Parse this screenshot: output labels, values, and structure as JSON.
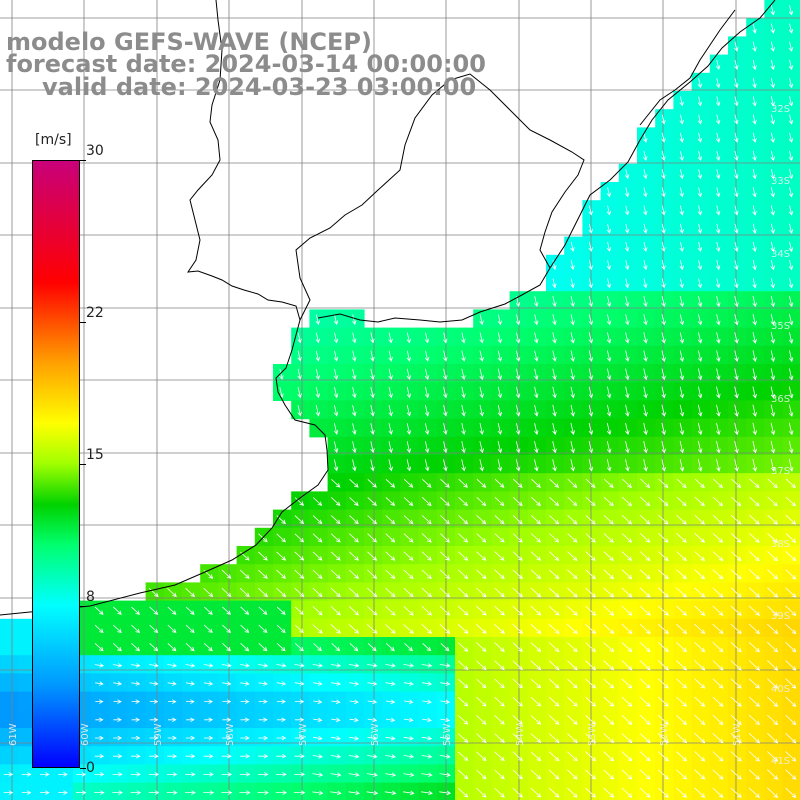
{
  "title": {
    "line1": "modelo GEFS-WAVE (NCEP)",
    "line2": "forecast date: 2024-03-14 00:00:00",
    "line3": "valid date: 2024-03-23 03:00:00"
  },
  "colorbar": {
    "unit": "[m/s]",
    "ticks": [
      "30",
      "22",
      "15",
      "8",
      "0"
    ],
    "tick_values": [
      30,
      22,
      15,
      8,
      0
    ],
    "min": 0,
    "max": 30,
    "stops": [
      {
        "v": 0,
        "color": "#0000ff"
      },
      {
        "v": 4,
        "color": "#0096ff"
      },
      {
        "v": 8,
        "color": "#00ffff"
      },
      {
        "v": 11,
        "color": "#00ff6e"
      },
      {
        "v": 13,
        "color": "#00d200"
      },
      {
        "v": 15,
        "color": "#a0ff00"
      },
      {
        "v": 17,
        "color": "#ffff00"
      },
      {
        "v": 20,
        "color": "#ffa000"
      },
      {
        "v": 24,
        "color": "#ff0000"
      },
      {
        "v": 30,
        "color": "#c8007a"
      }
    ]
  },
  "lat_labels": [
    "32S",
    "33S",
    "34S",
    "35S",
    "36S",
    "37S",
    "38S",
    "39S",
    "40S",
    "41S"
  ],
  "lon_labels": [
    "61W",
    "60W",
    "59W",
    "58W",
    "57W",
    "56W",
    "55W",
    "54W",
    "53W",
    "52W",
    "51W"
  ],
  "extent": {
    "lon_min": -61.55,
    "lon_max": -50.6,
    "lat_min": -41.65,
    "lat_max": -30.6
  },
  "colors": {
    "land": "#ffffff",
    "grid": "#808080",
    "coast": "#000000",
    "arrow": "#ffffff",
    "title": "#8c8c8c"
  }
}
